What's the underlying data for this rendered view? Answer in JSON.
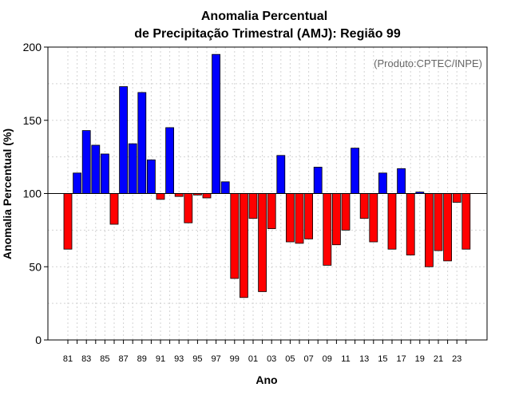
{
  "chart_data": {
    "type": "bar",
    "title_line1": "Anomalia Percentual",
    "title_line2": "de Precipitação Trimestral (AMJ): Região 99",
    "credit": "(Produto:CPTEC/INPE)",
    "xlabel": "Ano",
    "ylabel": "Anomalia Percentual (%)",
    "ylim": [
      0,
      200
    ],
    "yticks": [
      0,
      50,
      100,
      150,
      200
    ],
    "baseline": 100,
    "grid": true,
    "colors": {
      "above": "#0000ff",
      "below": "#ff0000",
      "outline": "#000000",
      "grid": "#d3d3d3"
    },
    "categories": [
      "81",
      "82",
      "83",
      "84",
      "85",
      "86",
      "87",
      "88",
      "89",
      "90",
      "91",
      "92",
      "93",
      "94",
      "95",
      "96",
      "97",
      "98",
      "99",
      "00",
      "01",
      "02",
      "03",
      "04",
      "05",
      "06",
      "07",
      "08",
      "09",
      "10",
      "11",
      "12",
      "13",
      "14",
      "15",
      "16",
      "17",
      "18",
      "19",
      "20",
      "21",
      "22",
      "23",
      "24"
    ],
    "xtick_labels": [
      "81",
      "83",
      "85",
      "87",
      "89",
      "91",
      "93",
      "95",
      "97",
      "99",
      "01",
      "03",
      "05",
      "07",
      "09",
      "11",
      "13",
      "15",
      "17",
      "19",
      "21",
      "23"
    ],
    "values": [
      62,
      114,
      143,
      133,
      127,
      79,
      173,
      134,
      169,
      123,
      96,
      145,
      98,
      80,
      99,
      97,
      195,
      108,
      42,
      29,
      83,
      33,
      76,
      126,
      67,
      66,
      69,
      118,
      51,
      65,
      75,
      131,
      83,
      67,
      114,
      62,
      117,
      58,
      101,
      50,
      61,
      54,
      94,
      62
    ]
  }
}
